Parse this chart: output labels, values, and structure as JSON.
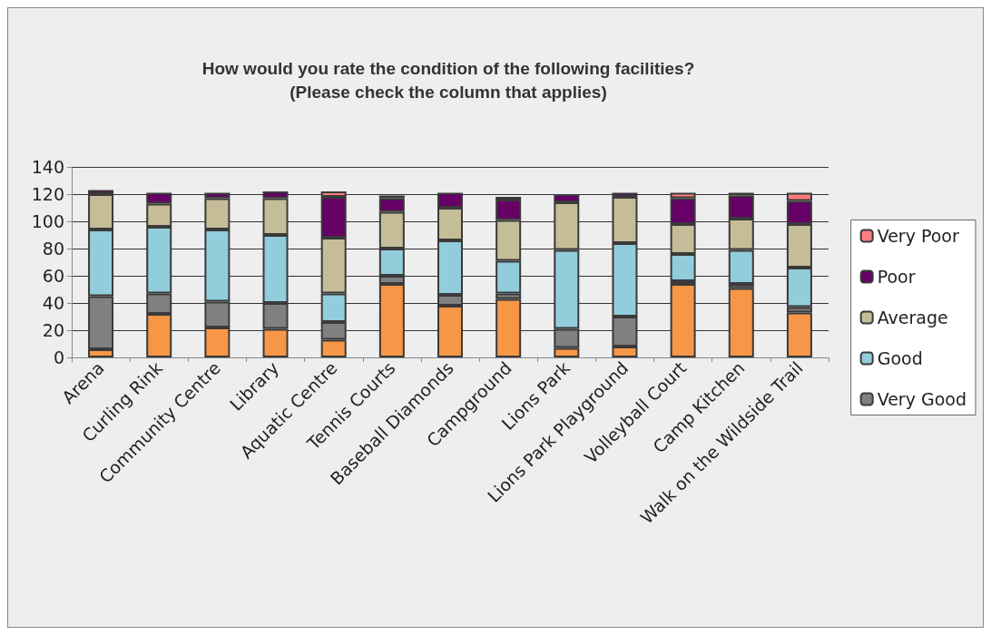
{
  "chart_data": {
    "type": "bar",
    "stacked": true,
    "title": "How would you rate the condition of the following facilities?\n(Please check the column that applies)",
    "categories": [
      "Arena",
      "Curling Rink",
      "Community Centre",
      "Library",
      "Aquatic Centre",
      "Tennis Courts",
      "Baseball Diamonds",
      "Campground",
      "Lions Park",
      "Lions Park Playground",
      "Volleyball Court",
      "Camp Kitchen",
      "Walk on the Wildside Trail"
    ],
    "series": [
      {
        "color": "#f79646",
        "values": [
          6,
          32,
          22,
          21,
          13,
          54,
          38,
          43,
          7,
          8,
          54,
          51,
          33
        ]
      },
      {
        "name": "Very Good",
        "color": "#808080",
        "values": [
          39,
          15,
          19,
          19,
          13,
          6,
          8,
          4,
          14,
          22,
          2,
          3,
          4
        ]
      },
      {
        "name": "Good",
        "color": "#92cddc",
        "values": [
          49,
          49,
          53,
          50,
          21,
          20,
          40,
          24,
          58,
          54,
          20,
          25,
          29
        ]
      },
      {
        "name": "Average",
        "color": "#c4bd97",
        "values": [
          26,
          17,
          23,
          27,
          41,
          27,
          24,
          30,
          35,
          34,
          22,
          23,
          32
        ]
      },
      {
        "name": "Poor",
        "color": "#660066",
        "values": [
          3,
          8,
          4,
          5,
          30,
          10,
          11,
          15,
          6,
          3,
          19,
          17,
          17
        ]
      },
      {
        "name": "Very Poor",
        "color": "#ff7c80",
        "values": [
          null,
          null,
          null,
          null,
          4,
          2,
          null,
          2,
          null,
          null,
          4,
          2,
          6
        ]
      }
    ],
    "ylim": [
      0,
      140
    ],
    "yticks": [
      0,
      20,
      40,
      60,
      80,
      100,
      120,
      140
    ],
    "grid": "y",
    "legend": "right"
  }
}
